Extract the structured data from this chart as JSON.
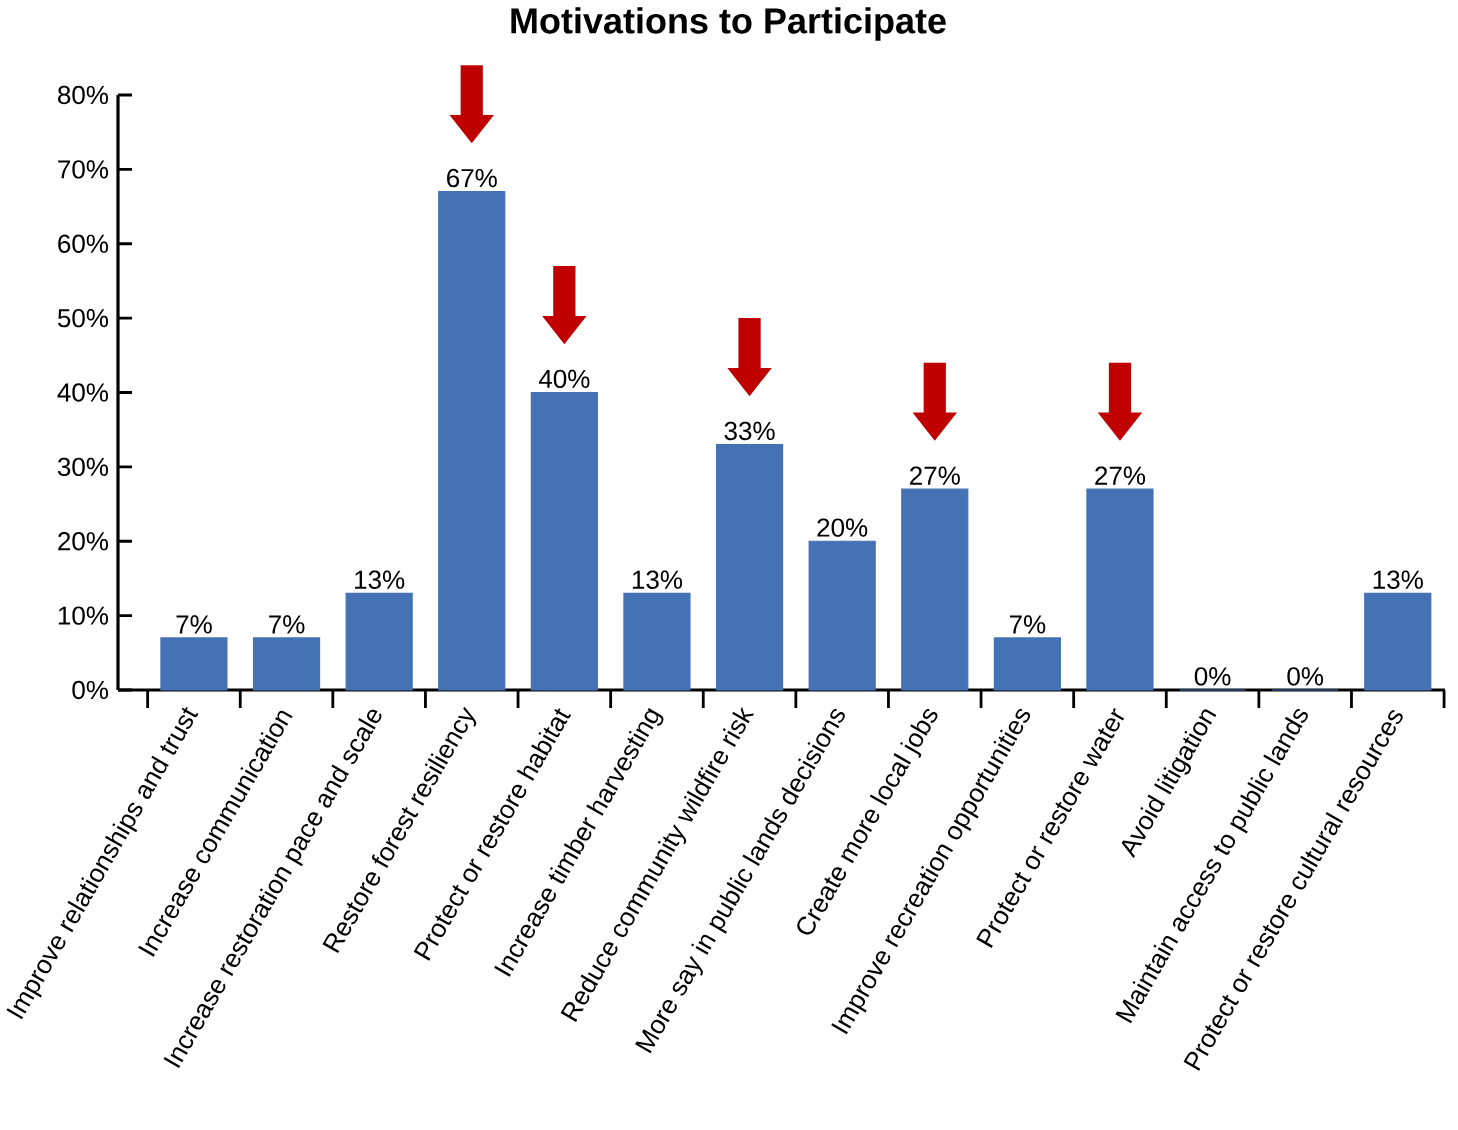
{
  "chart_data": {
    "type": "bar",
    "title": "Motivations to Participate",
    "categories": [
      "Improve relationships and trust",
      "Increase communication",
      "Increase restoration pace and scale",
      "Restore forest resiliency",
      "Protect or restore habitat",
      "Increase timber harvesting",
      "Reduce community wildfire risk",
      "More say in public lands decisions",
      "Create more local jobs",
      "Improve recreation opportunities",
      "Protect or restore water",
      "Avoid litigation",
      "Maintain access to public lands",
      "Protect or restore cultural resources"
    ],
    "values": [
      7,
      7,
      13,
      67,
      40,
      13,
      33,
      20,
      27,
      7,
      27,
      0,
      0,
      13
    ],
    "value_labels": [
      "7%",
      "7%",
      "13%",
      "67%",
      "40%",
      "13%",
      "33%",
      "20%",
      "27%",
      "7%",
      "27%",
      "0%",
      "0%",
      "13%"
    ],
    "color": "#4472b4",
    "ylim": [
      0,
      80
    ],
    "yticks": [
      {
        "value": 0,
        "label": "0%"
      },
      {
        "value": 10,
        "label": "10%"
      },
      {
        "value": 20,
        "label": "20%"
      },
      {
        "value": 30,
        "label": "30%"
      },
      {
        "value": 40,
        "label": "40%"
      },
      {
        "value": 50,
        "label": "50%"
      },
      {
        "value": 60,
        "label": "60%"
      },
      {
        "value": 70,
        "label": "70%"
      },
      {
        "value": 80,
        "label": "80%"
      }
    ],
    "grid": false
  }
}
